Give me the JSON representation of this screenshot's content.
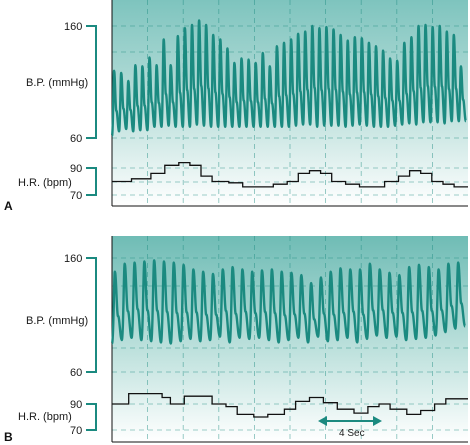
{
  "chart_data": [
    {
      "panel": "A",
      "type": "line",
      "bp": {
        "label": "B.P. (mmHg)",
        "ticks": [
          60,
          160
        ],
        "ylim": [
          55,
          172
        ],
        "peaks": [
          120,
          118,
          111,
          125,
          124,
          132,
          125,
          148,
          125,
          151,
          158,
          161,
          165,
          161,
          152,
          148,
          140,
          127,
          131,
          130,
          127,
          136,
          124,
          142,
          145,
          148,
          153,
          155,
          160,
          158,
          159,
          157,
          152,
          147,
          150,
          149,
          145,
          142,
          138,
          131,
          129,
          145,
          150,
          160,
          161,
          159,
          160,
          155,
          152,
          124
        ],
        "troughs": [
          62,
          66,
          68,
          66,
          67,
          67,
          70,
          70,
          71,
          70,
          70,
          70,
          72,
          71,
          70,
          70,
          70,
          70,
          70,
          70,
          70,
          70,
          70,
          70,
          70,
          70,
          71,
          72,
          72,
          70,
          71,
          71,
          71,
          70,
          71,
          72,
          71,
          70,
          70,
          70,
          71,
          72,
          73,
          72,
          74,
          74,
          74,
          73,
          75
        ]
      },
      "hr": {
        "label": "H.R. (bpm)",
        "ticks": [
          70,
          90
        ],
        "ylim": [
          64,
          100
        ],
        "steps": [
          [
            0,
            80
          ],
          [
            7,
            82
          ],
          [
            14,
            86
          ],
          [
            19,
            92
          ],
          [
            24,
            94
          ],
          [
            28,
            92
          ],
          [
            32,
            84
          ],
          [
            36,
            80
          ],
          [
            42,
            79
          ],
          [
            47,
            76
          ],
          [
            53,
            76
          ],
          [
            58,
            78
          ],
          [
            63,
            80
          ],
          [
            67,
            86
          ],
          [
            71,
            88
          ],
          [
            75,
            86
          ],
          [
            79,
            80
          ],
          [
            84,
            78
          ],
          [
            89,
            76
          ],
          [
            94,
            76
          ],
          [
            98,
            80
          ],
          [
            103,
            84
          ],
          [
            107,
            88
          ],
          [
            111,
            86
          ],
          [
            115,
            80
          ],
          [
            119,
            78
          ],
          [
            123,
            76
          ],
          [
            128,
            76
          ]
        ]
      }
    },
    {
      "panel": "B",
      "type": "line",
      "bp": {
        "label": "B.P. (mmHg)",
        "ticks": [
          60,
          160
        ],
        "ylim": [
          45,
          180
        ],
        "peaks": [
          148,
          155,
          156,
          157,
          158,
          157,
          156,
          154,
          150,
          148,
          146,
          150,
          152,
          150,
          148,
          149,
          150,
          148,
          147,
          145,
          138,
          143,
          148,
          151,
          150,
          150,
          155,
          150,
          147,
          145,
          152,
          154,
          152,
          150,
          155,
          156
        ],
        "troughs": [
          85,
          88,
          90,
          88,
          87,
          86,
          85,
          87,
          89,
          87,
          88,
          91,
          86,
          90,
          89,
          90,
          88,
          86,
          88,
          90,
          86,
          91,
          87,
          88,
          90,
          86,
          89,
          92,
          90,
          91,
          88,
          89,
          90,
          92,
          95,
          98,
          100
        ]
      },
      "hr": {
        "label": "H.R. (bpm)",
        "ticks": [
          70,
          90
        ],
        "ylim": [
          66,
          106
        ],
        "steps": [
          [
            0,
            90
          ],
          [
            6,
            98
          ],
          [
            14,
            98
          ],
          [
            18,
            95
          ],
          [
            21,
            90
          ],
          [
            26,
            96
          ],
          [
            31,
            96
          ],
          [
            36,
            90
          ],
          [
            41,
            88
          ],
          [
            45,
            82
          ],
          [
            51,
            80
          ],
          [
            56,
            82
          ],
          [
            62,
            86
          ],
          [
            66,
            92
          ],
          [
            71,
            95
          ],
          [
            76,
            91
          ],
          [
            81,
            86
          ],
          [
            87,
            83
          ],
          [
            92,
            88
          ],
          [
            96,
            90
          ],
          [
            100,
            86
          ],
          [
            106,
            82
          ],
          [
            111,
            85
          ],
          [
            116,
            90
          ],
          [
            120,
            94
          ],
          [
            124,
            94
          ],
          [
            128,
            94
          ]
        ]
      },
      "annotation": "4 Sec"
    }
  ],
  "colors": {
    "trace": "#1b8a80",
    "bg_top": "#7ec4be",
    "bg_bottom": "#ffffff",
    "axis": "#1b8a80",
    "ink": "#111111"
  }
}
